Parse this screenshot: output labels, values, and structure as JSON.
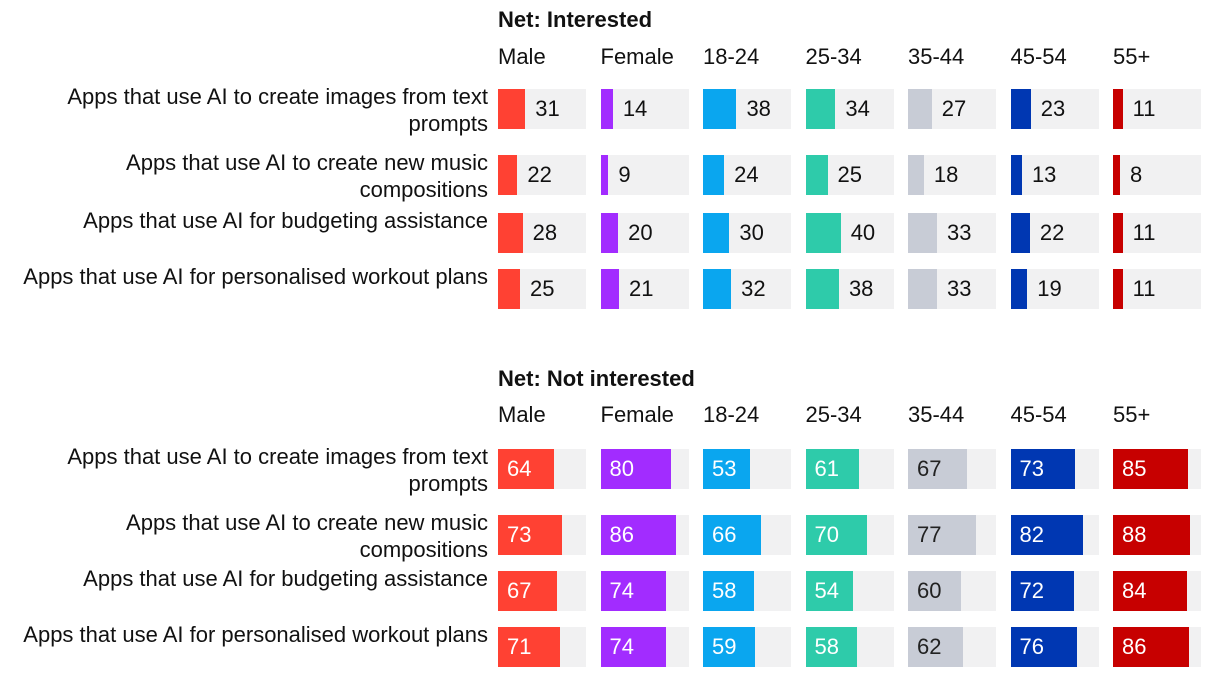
{
  "chart_data": {
    "type": "table",
    "columns": [
      "Male",
      "Female",
      "18-24",
      "25-34",
      "35-44",
      "45-54",
      "55+"
    ],
    "colors": [
      "#ff4133",
      "#a22cff",
      "#0aa6ef",
      "#2ecbaa",
      "#c8ccd6",
      "#0037b2",
      "#c70000"
    ],
    "rows": [
      "Apps that use AI to create images from text prompts",
      "Apps that use AI to create new music compositions",
      "Apps that use AI for budgeting assistance",
      "Apps that use AI for personalised workout plans"
    ],
    "sections": [
      {
        "title": "Net: Interested",
        "values": [
          [
            31,
            14,
            38,
            34,
            27,
            23,
            11
          ],
          [
            22,
            9,
            24,
            25,
            18,
            13,
            8
          ],
          [
            28,
            20,
            30,
            40,
            33,
            22,
            11
          ],
          [
            25,
            21,
            32,
            38,
            33,
            19,
            11
          ]
        ]
      },
      {
        "title": "Net: Not interested",
        "values": [
          [
            64,
            80,
            53,
            61,
            67,
            73,
            85
          ],
          [
            73,
            86,
            66,
            70,
            77,
            82,
            88
          ],
          [
            67,
            74,
            58,
            54,
            60,
            72,
            84
          ],
          [
            71,
            74,
            59,
            58,
            62,
            76,
            86
          ]
        ]
      }
    ],
    "value_max": 100
  }
}
